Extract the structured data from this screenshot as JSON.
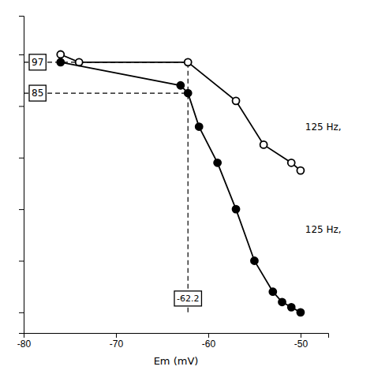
{
  "chart_data": {
    "type": "line",
    "xlabel": "Em (mV)",
    "xlim": [
      -80,
      -47
    ],
    "ylim": [
      -8,
      115
    ],
    "xticks": [
      -80,
      -70,
      -60,
      -50
    ],
    "yticks": [
      0,
      20,
      40,
      60,
      80,
      100
    ],
    "tick_labels": "x",
    "grid": false,
    "series": [
      {
        "x": [
          -76,
          -74,
          -62.2,
          -57,
          -54,
          -51,
          -50
        ],
        "values": [
          100,
          97,
          97,
          82,
          65,
          58,
          55
        ],
        "color": "#000000",
        "marker": "open-circle",
        "line_style": "solid"
      },
      {
        "x": [
          -76,
          -63,
          -62.2,
          -61,
          -59,
          -57,
          -55,
          -53,
          -52,
          -51,
          -50
        ],
        "values": [
          97,
          88,
          85,
          72,
          58,
          40,
          20,
          8,
          4,
          2,
          0
        ],
        "color": "#000000",
        "marker": "circle",
        "line_style": "solid"
      }
    ],
    "reference_lines": [
      {
        "orientation": "horizontal",
        "value": 97,
        "from": -80,
        "to": -62.2,
        "color": "#000000",
        "line_style": "dashed"
      },
      {
        "orientation": "horizontal",
        "value": 85,
        "from": -80,
        "to": -62.2,
        "color": "#000000",
        "line_style": "dashed"
      },
      {
        "orientation": "vertical",
        "value": -62.2,
        "from": 0,
        "to": 97,
        "color": "#000000",
        "line_style": "dashed"
      }
    ],
    "annotations": [
      {
        "text": "125 Hz,",
        "x": -49.5,
        "y": 72,
        "color": "#000000"
      },
      {
        "text": "125 Hz,",
        "x": -49.5,
        "y": 32,
        "color": "#000000"
      }
    ]
  }
}
